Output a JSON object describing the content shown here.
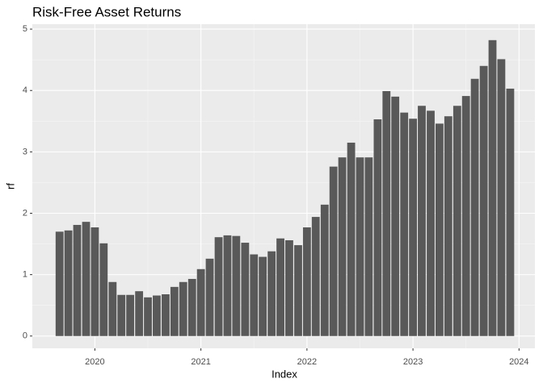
{
  "chart_data": {
    "type": "bar",
    "title": "Risk-Free Asset Returns",
    "xlabel": "Index",
    "ylabel": "rf",
    "x": [
      2019.667,
      2019.75,
      2019.833,
      2019.917,
      2020,
      2020.083,
      2020.167,
      2020.25,
      2020.333,
      2020.417,
      2020.5,
      2020.583,
      2020.667,
      2020.75,
      2020.833,
      2020.917,
      2021,
      2021.083,
      2021.167,
      2021.25,
      2021.333,
      2021.417,
      2021.5,
      2021.583,
      2021.667,
      2021.75,
      2021.833,
      2021.917,
      2022,
      2022.083,
      2022.167,
      2022.25,
      2022.333,
      2022.417,
      2022.5,
      2022.583,
      2022.667,
      2022.75,
      2022.833,
      2022.917,
      2023,
      2023.083,
      2023.167,
      2023.25,
      2023.333,
      2023.417,
      2023.5,
      2023.583,
      2023.667,
      2023.75,
      2023.833,
      2023.917
    ],
    "values": [
      1.7,
      1.72,
      1.81,
      1.86,
      1.77,
      1.51,
      0.88,
      0.67,
      0.67,
      0.73,
      0.63,
      0.66,
      0.68,
      0.8,
      0.88,
      0.93,
      1.09,
      1.26,
      1.61,
      1.64,
      1.63,
      1.52,
      1.33,
      1.29,
      1.38,
      1.59,
      1.56,
      1.48,
      1.77,
      1.94,
      2.14,
      2.76,
      2.91,
      3.15,
      2.91,
      2.91,
      3.53,
      3.99,
      3.9,
      3.64,
      3.54,
      3.75,
      3.67,
      3.46,
      3.58,
      3.75,
      3.91,
      4.19,
      4.4,
      4.82,
      4.51,
      4.03
    ],
    "color": "#595959",
    "xlim": [
      2019.41,
      2024.15
    ],
    "xticks": [
      2020,
      2021,
      2022,
      2023,
      2024
    ],
    "ylim": [
      -0.2,
      5.08
    ],
    "yticks": [
      0,
      1,
      2,
      3,
      4,
      5
    ],
    "grid": true
  }
}
